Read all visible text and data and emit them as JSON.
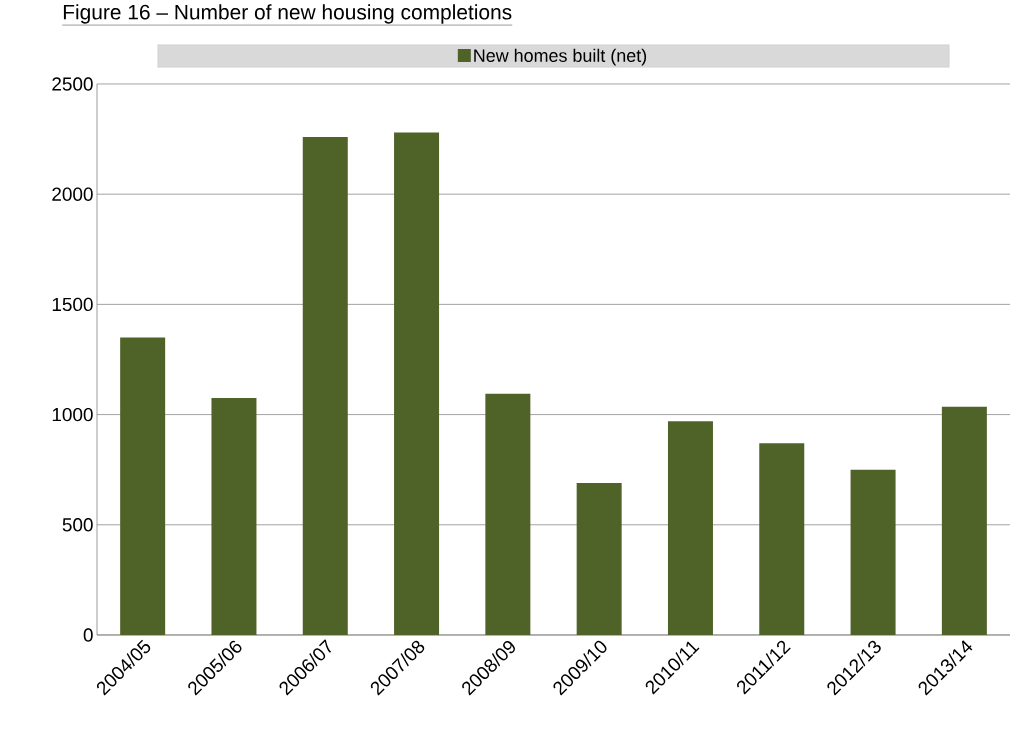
{
  "chart_data": {
    "type": "bar",
    "title": "Figure 16 – Number of new housing completions",
    "categories": [
      "2004/05",
      "2005/06",
      "2006/07",
      "2007/08",
      "2008/09",
      "2009/10",
      "2010/11",
      "2011/12",
      "2012/13",
      "2013/14"
    ],
    "series": [
      {
        "name": "New homes built (net)",
        "color": "#4f6228",
        "values": [
          1350,
          1075,
          2260,
          2280,
          1095,
          690,
          970,
          870,
          750,
          1035
        ]
      }
    ],
    "ylim": [
      0,
      2500
    ],
    "yticks": [
      0,
      500,
      1000,
      1500,
      2000,
      2500
    ],
    "grid": "y",
    "legend": "top"
  }
}
